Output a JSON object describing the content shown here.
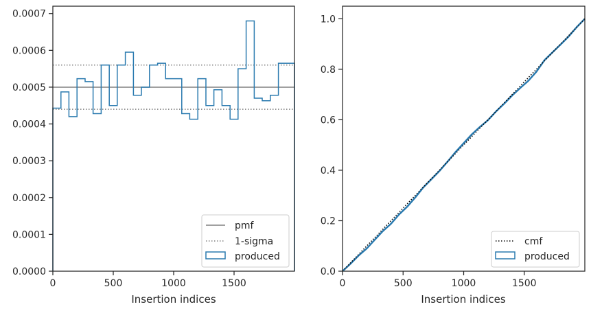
{
  "chart_data": [
    {
      "type": "line",
      "subtype": "step-histogram",
      "xlabel": "Insertion indices",
      "ylabel": "",
      "xlim": [
        0,
        2000
      ],
      "ylim": [
        0,
        0.00072
      ],
      "xticks": [
        0,
        500,
        1000,
        1500
      ],
      "yticks": [
        0,
        0.0001,
        0.0002,
        0.0003,
        0.0004,
        0.0005,
        0.0006,
        0.0007
      ],
      "ytick_labels": [
        "0.0000",
        "0.0001",
        "0.0002",
        "0.0003",
        "0.0004",
        "0.0005",
        "0.0006",
        "0.0007"
      ],
      "grid": false,
      "legend_position": "bottom-right",
      "series": [
        {
          "name": "pmf",
          "style": "solid",
          "color": "#808080",
          "y": 0.0005
        },
        {
          "name": "1-sigma",
          "style": "dotted",
          "color": "#808080",
          "y": [
            0.00044,
            0.00056
          ]
        },
        {
          "name": "produced",
          "style": "step",
          "color": "#2a7aaf",
          "bin_edges": [
            0,
            67,
            133,
            200,
            267,
            333,
            400,
            467,
            533,
            600,
            667,
            733,
            800,
            867,
            933,
            1000,
            1067,
            1133,
            1200,
            1267,
            1333,
            1400,
            1467,
            1533,
            1600,
            1667,
            1733,
            1800,
            1867,
            1933,
            2000
          ],
          "values": [
            0.000443,
            0.000487,
            0.00042,
            0.000523,
            0.000515,
            0.000428,
            0.00056,
            0.00045,
            0.00056,
            0.000595,
            0.000478,
            0.0005,
            0.00056,
            0.000565,
            0.000523,
            0.000523,
            0.000428,
            0.000413,
            0.000523,
            0.00045,
            0.000493,
            0.00045,
            0.000413,
            0.00055,
            0.00068,
            0.00047,
            0.000463,
            0.000478,
            0.000565,
            0.000565
          ]
        }
      ]
    },
    {
      "type": "line",
      "xlabel": "Insertion indices",
      "ylabel": "",
      "xlim": [
        0,
        2000
      ],
      "ylim": [
        0,
        1.05
      ],
      "xticks": [
        0,
        500,
        1000,
        1500
      ],
      "yticks": [
        0,
        0.2,
        0.4,
        0.6,
        0.8,
        1.0
      ],
      "ytick_labels": [
        "0.0",
        "0.2",
        "0.4",
        "0.6",
        "0.8",
        "1.0"
      ],
      "grid": false,
      "legend_position": "bottom-right",
      "series": [
        {
          "name": "cmf",
          "style": "dotted",
          "color": "#000000",
          "x": [
            0,
            2000
          ],
          "y": [
            0,
            1.0
          ]
        },
        {
          "name": "produced",
          "style": "solid",
          "color": "#2a7aaf",
          "x": [
            0,
            67,
            133,
            200,
            267,
            333,
            400,
            467,
            533,
            600,
            667,
            733,
            800,
            867,
            933,
            1000,
            1067,
            1133,
            1200,
            1267,
            1333,
            1400,
            1467,
            1533,
            1600,
            1667,
            1733,
            1800,
            1867,
            1933,
            2000
          ],
          "y": [
            0,
            0.03,
            0.062,
            0.09,
            0.125,
            0.159,
            0.188,
            0.225,
            0.255,
            0.292,
            0.332,
            0.364,
            0.397,
            0.434,
            0.472,
            0.507,
            0.542,
            0.571,
            0.598,
            0.633,
            0.663,
            0.696,
            0.726,
            0.754,
            0.79,
            0.836,
            0.867,
            0.898,
            0.93,
            0.967,
            1.0
          ]
        }
      ]
    }
  ],
  "colors": {
    "axis": "#262626",
    "produced": "#2a7aaf",
    "pmf": "#808080",
    "cmf": "#000000"
  }
}
